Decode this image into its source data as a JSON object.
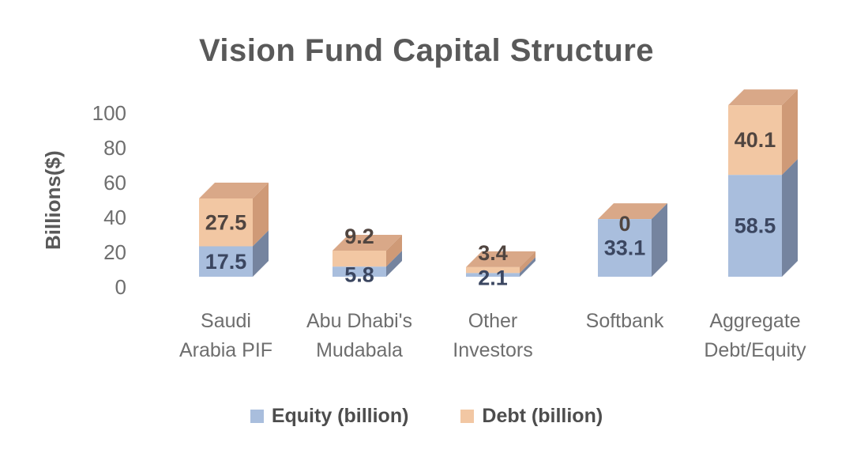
{
  "chart_data": {
    "type": "bar",
    "variant": "3d-stacked-column",
    "title": "Vision Fund Capital Structure",
    "ylabel": "Billions($)",
    "xlabel": "",
    "ylim": [
      0,
      100
    ],
    "yticks": [
      0,
      20,
      40,
      60,
      80,
      100
    ],
    "grid": false,
    "legend_position": "bottom",
    "categories": [
      "Saudi Arabia PIF",
      "Abu Dhabi's Mudabala",
      "Other Investors",
      "Softbank",
      "Aggregate Debt/Equity"
    ],
    "category_label_lines": [
      [
        "Saudi",
        "Arabia PIF"
      ],
      [
        "Abu Dhabi's",
        "Mudabala"
      ],
      [
        "Other",
        "Investors"
      ],
      [
        "Softbank"
      ],
      [
        "Aggregate",
        "Debt/Equity"
      ]
    ],
    "series": [
      {
        "name": "Equity (billion)",
        "values": [
          17.5,
          5.8,
          2.1,
          33.1,
          58.5
        ]
      },
      {
        "name": "Debt (billion)",
        "values": [
          27.5,
          9.2,
          3.4,
          0,
          40.1
        ]
      }
    ],
    "data_labels": true,
    "colors": {
      "equity_front": "#a9bedd",
      "equity_side": "#75849f",
      "debt_front": "#f2c7a3",
      "debt_side": "#cf9a77",
      "debt_top": "#d9a888",
      "title_text": "#595959",
      "axis_text": "#6e6e6e",
      "equity_label": "#3b4660",
      "debt_label": "#504540",
      "background": "#ffffff"
    }
  }
}
